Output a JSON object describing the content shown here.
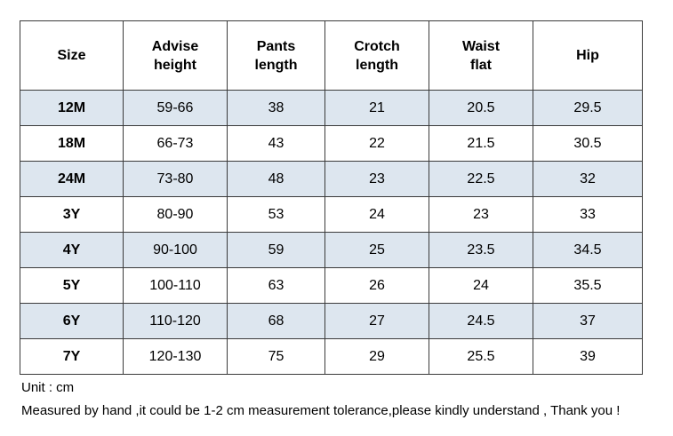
{
  "headers": [
    [
      "Size"
    ],
    [
      "Advise",
      "height"
    ],
    [
      "Pants",
      "length"
    ],
    [
      "Crotch",
      "length"
    ],
    [
      "Waist",
      "flat"
    ],
    [
      "Hip"
    ]
  ],
  "rows": [
    [
      "12M",
      "59-66",
      "38",
      "21",
      "20.5",
      "29.5"
    ],
    [
      "18M",
      "66-73",
      "43",
      "22",
      "21.5",
      "30.5"
    ],
    [
      "24M",
      "73-80",
      "48",
      "23",
      "22.5",
      "32"
    ],
    [
      "3Y",
      "80-90",
      "53",
      "24",
      "23",
      "33"
    ],
    [
      "4Y",
      "90-100",
      "59",
      "25",
      "23.5",
      "34.5"
    ],
    [
      "5Y",
      "100-110",
      "63",
      "26",
      "24",
      "35.5"
    ],
    [
      "6Y",
      "110-120",
      "68",
      "27",
      "24.5",
      "37"
    ],
    [
      "7Y",
      "120-130",
      "75",
      "29",
      "25.5",
      "39"
    ]
  ],
  "colors": {
    "shaded_row": "#dde6ef",
    "plain_row": "#ffffff",
    "border": "#3a3a3a"
  },
  "notes": {
    "unit": "Unit : cm",
    "tolerance": "Measured by hand ,it could be 1-2 cm measurement tolerance,please kindly understand , Thank you !"
  }
}
